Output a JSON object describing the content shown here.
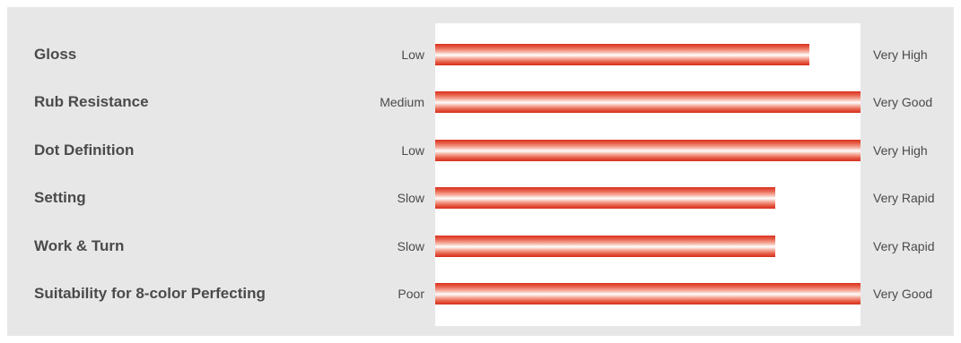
{
  "chart_data": {
    "type": "bar",
    "orientation": "horizontal",
    "scale": [
      0,
      100
    ],
    "rows": [
      {
        "attribute": "Gloss",
        "low": "Low",
        "high": "Very High",
        "value": 88
      },
      {
        "attribute": "Rub Resistance",
        "low": "Medium",
        "high": "Very Good",
        "value": 100
      },
      {
        "attribute": "Dot Definition",
        "low": "Low",
        "high": "Very High",
        "value": 100
      },
      {
        "attribute": "Setting",
        "low": "Slow",
        "high": "Very Rapid",
        "value": 80
      },
      {
        "attribute": "Work & Turn",
        "low": "Slow",
        "high": "Very Rapid",
        "value": 80
      },
      {
        "attribute": "Suitability for 8-color Perfecting",
        "low": "Poor",
        "high": "Very Good",
        "value": 100
      }
    ]
  },
  "colors": {
    "panel": "#e7e7e8",
    "track": "#ffffff",
    "bar_edge": "#d9301e",
    "bar_mid": "#ffffff",
    "text": "#4a4a4a"
  }
}
